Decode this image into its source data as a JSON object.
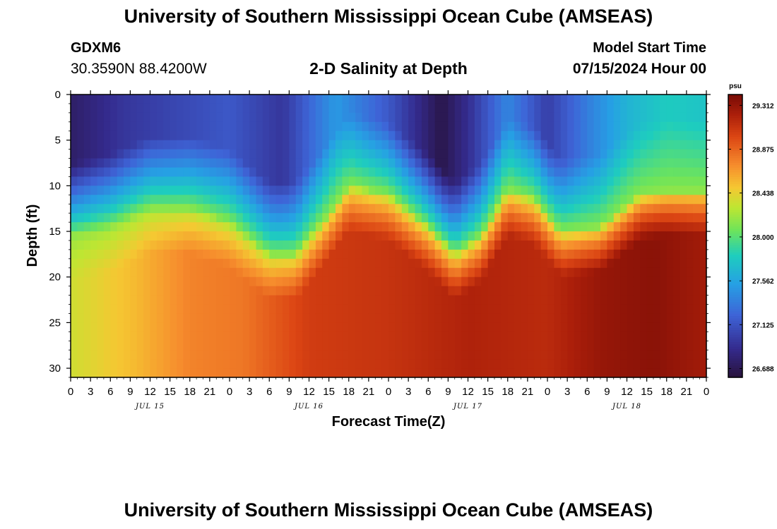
{
  "header": {
    "title": "University of Southern Mississippi Ocean Cube (AMSEAS)",
    "station_id": "GDXM6",
    "station_location": "30.3590N  88.4200W",
    "plot_title": "2-D Salinity at Depth",
    "start_label": "Model Start Time",
    "start_value": "07/15/2024 Hour 00"
  },
  "footer": {
    "title": "University of Southern Mississippi Ocean Cube (AMSEAS)"
  },
  "chart_data": {
    "type": "heatmap",
    "title": "2-D Salinity at Depth",
    "xlabel": "Forecast Time(Z)",
    "ylabel": "Depth (ft)",
    "x_range_hours": [
      0,
      96
    ],
    "ylim": [
      0,
      31
    ],
    "y_ticks": [
      0,
      5,
      10,
      15,
      20,
      25,
      30
    ],
    "x_tick_hours": [
      0,
      3,
      6,
      9,
      12,
      15,
      18,
      21,
      24,
      27,
      30,
      33,
      36,
      39,
      42,
      45,
      48,
      51,
      54,
      57,
      60,
      63,
      66,
      69,
      72,
      75,
      78,
      81,
      84,
      87,
      90,
      93,
      96
    ],
    "x_tick_labels": [
      "0",
      "3",
      "6",
      "9",
      "12",
      "15",
      "18",
      "21",
      "0",
      "3",
      "6",
      "9",
      "12",
      "15",
      "18",
      "21",
      "0",
      "3",
      "6",
      "9",
      "12",
      "15",
      "18",
      "21",
      "0",
      "3",
      "6",
      "9",
      "12",
      "15",
      "18",
      "21",
      "0"
    ],
    "day_labels": [
      {
        "label": "JUL 15",
        "hour": 12
      },
      {
        "label": "JUL 16",
        "hour": 36
      },
      {
        "label": "JUL 17",
        "hour": 60
      },
      {
        "label": "JUL 18",
        "hour": 84
      }
    ],
    "colorbar": {
      "unit": "psu",
      "min": 26.6,
      "max": 29.42,
      "ticks": [
        "29.312",
        "28.875",
        "28.438",
        "28.000",
        "27.562",
        "27.125",
        "26.688"
      ]
    },
    "interface_depth_ft": [
      {
        "hour": 0,
        "depth": 15.5
      },
      {
        "hour": 6,
        "depth": 14.5
      },
      {
        "hour": 12,
        "depth": 12.5
      },
      {
        "hour": 18,
        "depth": 12.5
      },
      {
        "hour": 24,
        "depth": 14
      },
      {
        "hour": 30,
        "depth": 17.5
      },
      {
        "hour": 34,
        "depth": 17.5
      },
      {
        "hour": 38,
        "depth": 14
      },
      {
        "hour": 42,
        "depth": 10
      },
      {
        "hour": 48,
        "depth": 11
      },
      {
        "hour": 54,
        "depth": 14.5
      },
      {
        "hour": 58,
        "depth": 17.5
      },
      {
        "hour": 62,
        "depth": 15.5
      },
      {
        "hour": 66,
        "depth": 10.5
      },
      {
        "hour": 70,
        "depth": 11.5
      },
      {
        "hour": 74,
        "depth": 15
      },
      {
        "hour": 80,
        "depth": 14.5
      },
      {
        "hour": 86,
        "depth": 11
      },
      {
        "hour": 90,
        "depth": 10.5
      },
      {
        "hour": 96,
        "depth": 10.5
      }
    ],
    "deep_salinity": [
      {
        "hour": 0,
        "value": 28.35
      },
      {
        "hour": 10,
        "value": 28.55
      },
      {
        "hour": 18,
        "value": 28.75
      },
      {
        "hour": 26,
        "value": 28.8
      },
      {
        "hour": 36,
        "value": 29.05
      },
      {
        "hour": 48,
        "value": 29.1
      },
      {
        "hour": 60,
        "value": 29.2
      },
      {
        "hour": 72,
        "value": 29.15
      },
      {
        "hour": 80,
        "value": 29.3
      },
      {
        "hour": 88,
        "value": 29.35
      },
      {
        "hour": 96,
        "value": 29.25
      }
    ],
    "surface_salinity": [
      {
        "hour": 0,
        "value": 26.75
      },
      {
        "hour": 8,
        "value": 26.95
      },
      {
        "hour": 16,
        "value": 27.05
      },
      {
        "hour": 24,
        "value": 27.15
      },
      {
        "hour": 32,
        "value": 26.95
      },
      {
        "hour": 40,
        "value": 27.5
      },
      {
        "hour": 48,
        "value": 27.15
      },
      {
        "hour": 52,
        "value": 26.9
      },
      {
        "hour": 56,
        "value": 26.65
      },
      {
        "hour": 60,
        "value": 26.9
      },
      {
        "hour": 66,
        "value": 27.4
      },
      {
        "hour": 72,
        "value": 27.0
      },
      {
        "hour": 78,
        "value": 27.35
      },
      {
        "hour": 84,
        "value": 27.65
      },
      {
        "hour": 90,
        "value": 27.8
      },
      {
        "hour": 96,
        "value": 27.75
      }
    ]
  }
}
